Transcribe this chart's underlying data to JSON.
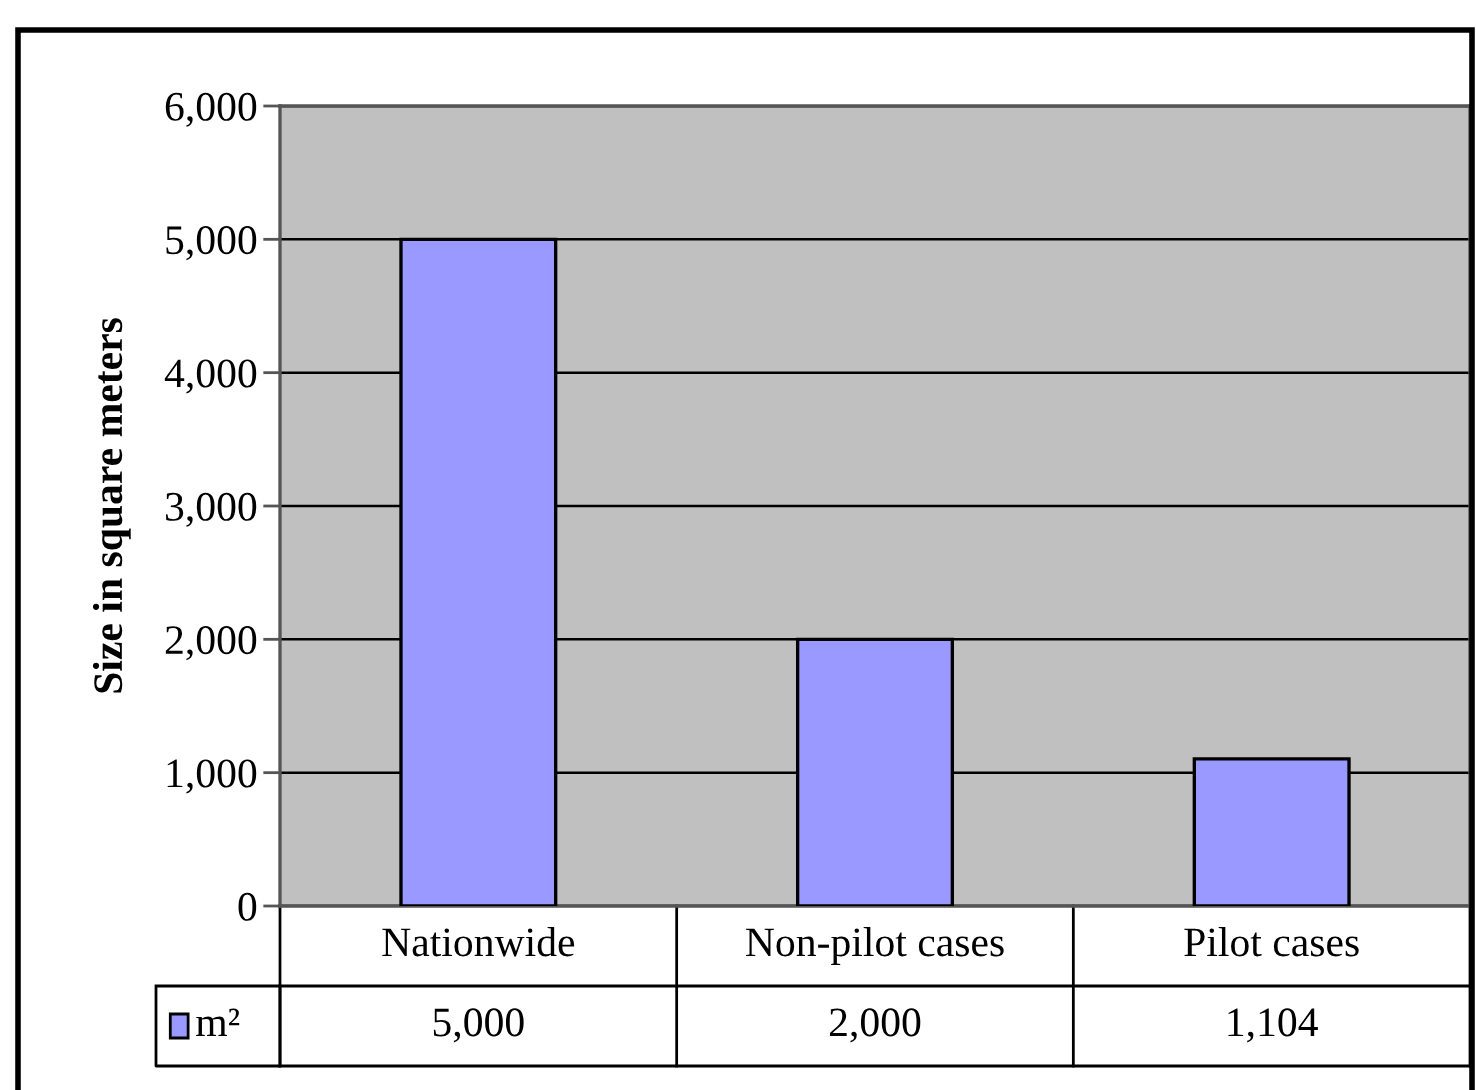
{
  "chart_data": {
    "type": "bar",
    "ylabel": "Size in square meters",
    "categories": [
      "Nationwide",
      "Non-pilot cases",
      "Pilot cases"
    ],
    "series": [
      {
        "name": "m²",
        "color": "#9999ff",
        "values": [
          5000,
          2000,
          1104
        ],
        "value_labels": [
          "5,000",
          "2,000",
          "1,104"
        ]
      }
    ],
    "ylim": [
      0,
      6000
    ],
    "yticks": [
      {
        "value": 0,
        "label": "0"
      },
      {
        "value": 1000,
        "label": "1,000"
      },
      {
        "value": 2000,
        "label": "2,000"
      },
      {
        "value": 3000,
        "label": "3,000"
      },
      {
        "value": 4000,
        "label": "4,000"
      },
      {
        "value": 5000,
        "label": "5,000"
      },
      {
        "value": 6000,
        "label": "6,000"
      }
    ],
    "grid": "y",
    "legend": "bottom left"
  }
}
